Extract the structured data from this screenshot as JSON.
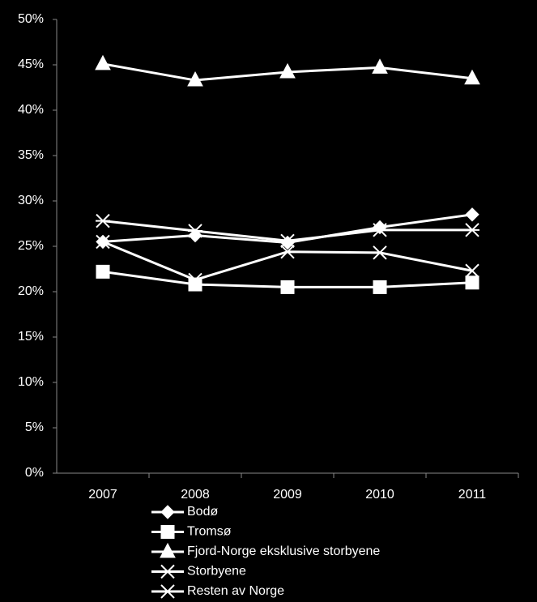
{
  "chart_data": {
    "type": "line",
    "categories": [
      "2007",
      "2008",
      "2009",
      "2010",
      "2011"
    ],
    "series": [
      {
        "name": "Bodø",
        "color": "#ffffff",
        "marker": "diamond",
        "values": [
          25.5,
          26.2,
          25.4,
          27.1,
          28.5
        ]
      },
      {
        "name": "Tromsø",
        "color": "#ffffff",
        "marker": "square",
        "values": [
          22.2,
          20.8,
          20.5,
          20.5,
          21.0
        ]
      },
      {
        "name": "Fjord-Norge eksklusive storbyene",
        "color": "#ffffff",
        "marker": "triangle",
        "values": [
          45.1,
          43.3,
          44.2,
          44.7,
          43.5
        ]
      },
      {
        "name": "Storbyene",
        "color": "#ffffff",
        "marker": "x",
        "values": [
          25.5,
          21.3,
          24.4,
          24.3,
          22.3
        ]
      },
      {
        "name": "Resten av Norge",
        "color": "#ffffff",
        "marker": "asterisk",
        "values": [
          27.8,
          26.7,
          25.6,
          26.8,
          26.8
        ]
      }
    ],
    "ylim": [
      0,
      50
    ],
    "yticks": [
      {
        "value": 0,
        "label": "0%"
      },
      {
        "value": 5,
        "label": "5%"
      },
      {
        "value": 10,
        "label": "10%"
      },
      {
        "value": 15,
        "label": "15%"
      },
      {
        "value": 20,
        "label": "20%"
      },
      {
        "value": 25,
        "label": "25%"
      },
      {
        "value": 30,
        "label": "30%"
      },
      {
        "value": 35,
        "label": "35%"
      },
      {
        "value": 40,
        "label": "40%"
      },
      {
        "value": 45,
        "label": "45%"
      },
      {
        "value": 50,
        "label": "50%"
      }
    ],
    "grid": false,
    "legend": "bottom-left"
  }
}
